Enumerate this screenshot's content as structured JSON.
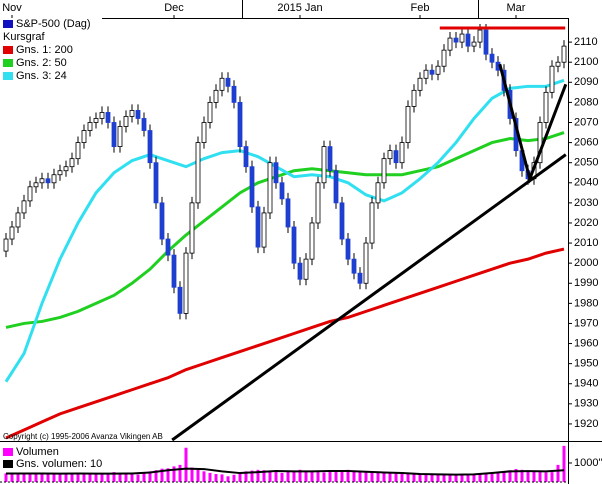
{
  "chart_data": {
    "type": "candlestick",
    "title": "S&P-500 (Dag)",
    "title_color": "#1010c0",
    "subtitle": "Kursgraf",
    "copyright": "Copyright (c) 1995-2006 Avanza Vikingen AB",
    "up_color": "#ffffff",
    "down_color": "#1f3fd0",
    "open": [
      2006,
      2012,
      2018,
      2025,
      2031,
      2038,
      2040,
      2042,
      2040,
      2044,
      2046,
      2048,
      2052,
      2060,
      2066,
      2070,
      2072,
      2075,
      2070,
      2058,
      2068,
      2073,
      2076,
      2072,
      2066,
      2050,
      2030,
      2012,
      2004,
      1988,
      1975,
      2005,
      2030,
      2060,
      2070,
      2080,
      2086,
      2092,
      2088,
      2080,
      2058,
      2048,
      2028,
      2008,
      2025,
      2050,
      2040,
      2032,
      2018,
      2000,
      1992,
      2002,
      2020,
      2040,
      2058,
      2046,
      2030,
      2012,
      2002,
      1995,
      1990,
      2010,
      2030,
      2040,
      2052,
      2056,
      2050,
      2060,
      2078,
      2086,
      2092,
      2096,
      2094,
      2098,
      2106,
      2112,
      2110,
      2114,
      2108,
      2110,
      2116,
      2104,
      2100,
      2096,
      2086,
      2072,
      2056,
      2046,
      2042,
      2050,
      2070,
      2085,
      2098,
      2100
    ],
    "high": [
      2015,
      2021,
      2028,
      2034,
      2041,
      2043,
      2045,
      2045,
      2047,
      2049,
      2051,
      2055,
      2063,
      2069,
      2073,
      2075,
      2078,
      2078,
      2073,
      2071,
      2076,
      2079,
      2079,
      2075,
      2069,
      2053,
      2033,
      2015,
      2007,
      1991,
      2008,
      2033,
      2063,
      2073,
      2083,
      2089,
      2095,
      2095,
      2091,
      2083,
      2061,
      2051,
      2031,
      2028,
      2053,
      2053,
      2043,
      2035,
      2021,
      2003,
      2005,
      2023,
      2043,
      2061,
      2061,
      2049,
      2033,
      2015,
      2005,
      1998,
      2013,
      2033,
      2043,
      2055,
      2059,
      2059,
      2063,
      2081,
      2089,
      2095,
      2099,
      2099,
      2101,
      2109,
      2115,
      2115,
      2117,
      2117,
      2113,
      2119,
      2119,
      2107,
      2103,
      2099,
      2089,
      2075,
      2059,
      2049,
      2053,
      2073,
      2088,
      2101,
      2103,
      2111
    ],
    "low": [
      2003,
      2009,
      2015,
      2022,
      2028,
      2035,
      2037,
      2037,
      2037,
      2041,
      2043,
      2045,
      2049,
      2057,
      2063,
      2067,
      2069,
      2067,
      2055,
      2055,
      2065,
      2070,
      2069,
      2063,
      2047,
      2027,
      2009,
      2001,
      1985,
      1972,
      1972,
      2002,
      2027,
      2057,
      2067,
      2077,
      2083,
      2085,
      2077,
      2055,
      2045,
      2025,
      2005,
      2005,
      2022,
      2037,
      2029,
      2015,
      1997,
      1989,
      1989,
      1999,
      2017,
      2037,
      2043,
      2027,
      2009,
      1999,
      1992,
      1987,
      1987,
      2007,
      2027,
      2037,
      2049,
      2047,
      2047,
      2057,
      2075,
      2083,
      2089,
      2091,
      2091,
      2095,
      2103,
      2107,
      2107,
      2105,
      2105,
      2107,
      2101,
      2097,
      2093,
      2083,
      2069,
      2053,
      2043,
      2039,
      2039,
      2047,
      2067,
      2082,
      2095,
      2097
    ],
    "close": [
      2012,
      2018,
      2025,
      2031,
      2038,
      2040,
      2042,
      2040,
      2044,
      2046,
      2048,
      2052,
      2060,
      2066,
      2070,
      2072,
      2075,
      2070,
      2058,
      2068,
      2073,
      2076,
      2072,
      2066,
      2050,
      2030,
      2012,
      2004,
      1988,
      1975,
      2005,
      2030,
      2060,
      2070,
      2080,
      2086,
      2092,
      2088,
      2080,
      2058,
      2048,
      2028,
      2008,
      2025,
      2050,
      2040,
      2032,
      2018,
      2000,
      1992,
      2002,
      2020,
      2040,
      2058,
      2046,
      2030,
      2012,
      2002,
      1995,
      1990,
      2010,
      2030,
      2040,
      2052,
      2056,
      2050,
      2060,
      2078,
      2086,
      2092,
      2096,
      2094,
      2098,
      2106,
      2112,
      2110,
      2114,
      2108,
      2110,
      2116,
      2104,
      2100,
      2096,
      2086,
      2072,
      2056,
      2046,
      2042,
      2050,
      2070,
      2085,
      2098,
      2100,
      2108
    ],
    "xticks": [
      {
        "value": 1,
        "label": "Nov"
      },
      {
        "value": 28,
        "label": "Dec"
      },
      {
        "value": 49,
        "label": "2015 Jan"
      },
      {
        "value": 69,
        "label": "Feb"
      },
      {
        "value": 85,
        "label": "Mar"
      }
    ],
    "ylim": [
      1912,
      2121
    ],
    "yticks": [
      1920,
      1930,
      1940,
      1950,
      1960,
      1970,
      1980,
      1990,
      2000,
      2010,
      2020,
      2030,
      2040,
      2050,
      2060,
      2070,
      2080,
      2090,
      2100,
      2110
    ],
    "series": [
      {
        "name": "Gns. 1: 200",
        "color": "#e00000",
        "x": [
          0,
          3,
          6,
          9,
          12,
          15,
          18,
          21,
          24,
          27,
          30,
          33,
          36,
          39,
          42,
          45,
          48,
          51,
          54,
          57,
          60,
          63,
          66,
          69,
          72,
          75,
          78,
          81,
          84,
          87,
          90,
          93
        ],
        "values": [
          1913,
          1917,
          1921,
          1925,
          1928,
          1931,
          1934,
          1937,
          1940,
          1943,
          1947,
          1950,
          1953,
          1956,
          1959,
          1962,
          1965,
          1968,
          1971,
          1973,
          1976,
          1979,
          1982,
          1985,
          1988,
          1991,
          1994,
          1997,
          2000,
          2002,
          2005,
          2007
        ]
      },
      {
        "name": "Gns. 2: 50",
        "color": "#20d020",
        "x": [
          0,
          3,
          6,
          9,
          12,
          15,
          18,
          21,
          24,
          27,
          30,
          33,
          36,
          39,
          42,
          45,
          48,
          51,
          54,
          57,
          60,
          63,
          66,
          69,
          72,
          75,
          78,
          81,
          84,
          87,
          90,
          93
        ],
        "values": [
          1968,
          1970,
          1971,
          1973,
          1976,
          1980,
          1984,
          1990,
          1997,
          2006,
          2014,
          2021,
          2028,
          2035,
          2040,
          2043,
          2046,
          2047,
          2046,
          2045,
          2044,
          2044,
          2044,
          2046,
          2048,
          2052,
          2056,
          2060,
          2062,
          2061,
          2062,
          2065
        ]
      },
      {
        "name": "Gns. 3: 24",
        "color": "#30e0f0",
        "x": [
          0,
          3,
          6,
          9,
          12,
          15,
          18,
          21,
          24,
          27,
          30,
          33,
          36,
          39,
          42,
          45,
          48,
          51,
          54,
          57,
          60,
          63,
          66,
          69,
          72,
          75,
          78,
          81,
          84,
          87,
          90,
          93
        ],
        "values": [
          1941,
          1955,
          1980,
          2002,
          2020,
          2035,
          2045,
          2051,
          2054,
          2051,
          2048,
          2052,
          2055,
          2056,
          2053,
          2048,
          2043,
          2044,
          2043,
          2040,
          2034,
          2031,
          2035,
          2042,
          2050,
          2060,
          2072,
          2082,
          2087,
          2088,
          2088,
          2091
        ]
      }
    ],
    "drawings": [
      {
        "color": "#000000",
        "x": [
          27.7,
          93.3
        ],
        "values": [
          1912,
          2054
        ]
      },
      {
        "color": "#e00000",
        "x": [
          72.3,
          93.2
        ],
        "values": [
          2117,
          2117
        ]
      },
      {
        "color": "#000000",
        "x": [
          82.3,
          87.3,
          93.3
        ],
        "values": [
          2099,
          2042,
          2089
        ]
      }
    ],
    "volume": {
      "name": "Volumen",
      "color": "#ff00ff",
      "values": [
        450,
        420,
        480,
        430,
        460,
        500,
        440,
        410,
        430,
        470,
        450,
        420,
        400,
        440,
        460,
        430,
        410,
        450,
        520,
        480,
        430,
        410,
        390,
        450,
        560,
        620,
        700,
        720,
        820,
        900,
        1800,
        760,
        640,
        560,
        480,
        420,
        400,
        300,
        380,
        520,
        560,
        600,
        640,
        620,
        560,
        520,
        480,
        540,
        600,
        640,
        580,
        560,
        520,
        500,
        560,
        600,
        620,
        640,
        600,
        580,
        560,
        520,
        500,
        480,
        460,
        500,
        520,
        500,
        460,
        440,
        420,
        400,
        380,
        420,
        400,
        380,
        360,
        400,
        380,
        420,
        440,
        480,
        500,
        540,
        620,
        680,
        640,
        560,
        540,
        520,
        500,
        520,
        900,
        1900
      ],
      "ylim": [
        0,
        2050
      ],
      "yticks": [
        {
          "value": 1000,
          "label": "1000''"
        }
      ],
      "average": {
        "name": "Gns. volumen: 10",
        "color": "#000000",
        "x": [
          0,
          3,
          6,
          9,
          12,
          15,
          18,
          21,
          24,
          27,
          30,
          33,
          36,
          39,
          42,
          45,
          48,
          51,
          54,
          57,
          60,
          63,
          66,
          69,
          72,
          75,
          78,
          81,
          84,
          87,
          90,
          93
        ],
        "values": [
          450,
          450,
          445,
          440,
          445,
          440,
          440,
          450,
          500,
          620,
          700,
          680,
          560,
          470,
          520,
          580,
          560,
          560,
          580,
          580,
          540,
          500,
          470,
          420,
          400,
          390,
          400,
          470,
          560,
          570,
          560,
          620
        ]
      }
    }
  }
}
